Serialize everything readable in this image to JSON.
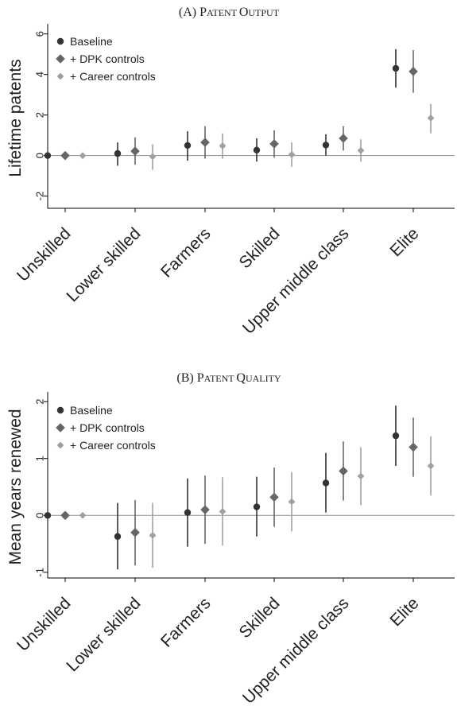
{
  "chart_data": [
    {
      "type": "scatter",
      "panel_label": "(A) ",
      "title_caps": [
        "Patent",
        "Output"
      ],
      "ylabel": "Lifetime patents",
      "ylim": [
        -2.6,
        6.3
      ],
      "yticks": [
        -2,
        0,
        2,
        4,
        6
      ],
      "categories": [
        "Unskilled",
        "Lower skilled",
        "Farmers",
        "Skilled",
        "Upper middle class",
        "Elite"
      ],
      "legend_position": "top-left",
      "series": [
        {
          "name": "Baseline",
          "color": "#333333",
          "marker": "circle",
          "values": [
            0,
            0.1,
            0.5,
            0.27,
            0.52,
            4.3
          ],
          "ci_low": [
            0,
            -0.5,
            -0.25,
            -0.3,
            0,
            3.35
          ],
          "ci_high": [
            0,
            0.65,
            1.2,
            0.85,
            1.05,
            5.25
          ]
        },
        {
          "name": "+ DPK controls",
          "color": "#666666",
          "marker": "diamond",
          "values": [
            0,
            0.22,
            0.65,
            0.58,
            0.85,
            4.15
          ],
          "ci_low": [
            0,
            -0.45,
            -0.15,
            -0.1,
            0.25,
            3.1
          ],
          "ci_high": [
            0,
            0.9,
            1.45,
            1.25,
            1.45,
            5.2
          ]
        },
        {
          "name": "+ Career controls",
          "color": "#a0a0a0",
          "marker": "diamond",
          "values": [
            0,
            -0.05,
            0.48,
            0.05,
            0.25,
            1.85
          ],
          "ci_low": [
            0,
            -0.7,
            -0.15,
            -0.55,
            -0.3,
            1.1
          ],
          "ci_high": [
            0,
            0.55,
            1.1,
            0.65,
            0.8,
            2.55
          ]
        }
      ]
    },
    {
      "type": "scatter",
      "panel_label": "(B) ",
      "title_caps": [
        "Patent",
        "Quality"
      ],
      "ylabel": "Mean years renewed",
      "ylim": [
        -1.1,
        2.1
      ],
      "yticks": [
        -1,
        0,
        1,
        2
      ],
      "categories": [
        "Unskilled",
        "Lower skilled",
        "Farmers",
        "Skilled",
        "Upper middle class",
        "Elite"
      ],
      "legend_position": "top-left",
      "series": [
        {
          "name": "Baseline",
          "color": "#333333",
          "marker": "circle",
          "values": [
            0,
            -0.37,
            0.05,
            0.15,
            0.57,
            1.4
          ],
          "ci_low": [
            0,
            -0.95,
            -0.55,
            -0.37,
            0.05,
            0.87
          ],
          "ci_high": [
            0,
            0.22,
            0.65,
            0.68,
            1.1,
            1.93
          ]
        },
        {
          "name": "+ DPK controls",
          "color": "#666666",
          "marker": "diamond",
          "values": [
            0,
            -0.3,
            0.1,
            0.32,
            0.78,
            1.2
          ],
          "ci_low": [
            0,
            -0.88,
            -0.5,
            -0.2,
            0.26,
            0.68
          ],
          "ci_high": [
            0,
            0.27,
            0.7,
            0.84,
            1.3,
            1.72
          ]
        },
        {
          "name": "+ Career controls",
          "color": "#a0a0a0",
          "marker": "diamond",
          "values": [
            0,
            -0.35,
            0.07,
            0.24,
            0.69,
            0.87
          ],
          "ci_low": [
            0,
            -0.92,
            -0.53,
            -0.28,
            0.18,
            0.35
          ],
          "ci_high": [
            0,
            0.22,
            0.67,
            0.76,
            1.2,
            1.39
          ]
        }
      ]
    }
  ]
}
